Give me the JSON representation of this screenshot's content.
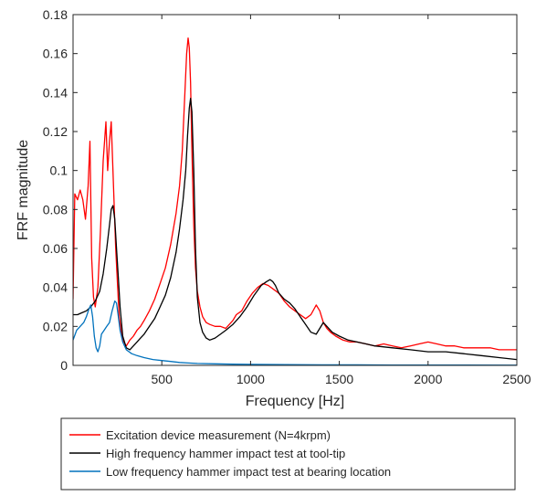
{
  "chart_data": {
    "type": "line",
    "title": "",
    "xlabel": "Frequency [Hz]",
    "ylabel": "FRF magnitude",
    "xlim": [
      0,
      2500
    ],
    "ylim": [
      0,
      0.18
    ],
    "xticks": [
      500,
      1000,
      1500,
      2000,
      2500
    ],
    "xtick_labels": [
      "500",
      "1000",
      "1500",
      "2000",
      "2500"
    ],
    "yticks": [
      0,
      0.02,
      0.04,
      0.06,
      0.08,
      0.1,
      0.12,
      0.14,
      0.16,
      0.18
    ],
    "ytick_labels": [
      "0",
      "0.02",
      "0.04",
      "0.06",
      "0.08",
      "0.1",
      "0.12",
      "0.14",
      "0.16",
      "0.18"
    ],
    "grid": false,
    "legend_placement": "below",
    "series": [
      {
        "name": "Excitation device measurement (N=4krpm)",
        "color": "#ff0000",
        "x": [
          0,
          10,
          25,
          40,
          55,
          70,
          85,
          95,
          105,
          115,
          125,
          140,
          155,
          170,
          185,
          195,
          205,
          215,
          225,
          240,
          260,
          280,
          300,
          320,
          340,
          360,
          380,
          400,
          430,
          460,
          490,
          520,
          550,
          580,
          600,
          615,
          630,
          640,
          648,
          655,
          662,
          670,
          680,
          690,
          700,
          715,
          730,
          750,
          770,
          800,
          830,
          860,
          880,
          900,
          920,
          950,
          980,
          1010,
          1040,
          1070,
          1100,
          1130,
          1160,
          1190,
          1220,
          1250,
          1280,
          1310,
          1340,
          1370,
          1390,
          1410,
          1430,
          1450,
          1480,
          1520,
          1560,
          1600,
          1650,
          1700,
          1750,
          1800,
          1850,
          1900,
          1950,
          2000,
          2050,
          2100,
          2150,
          2200,
          2250,
          2300,
          2350,
          2400,
          2450,
          2500
        ],
        "y": [
          0.034,
          0.088,
          0.085,
          0.09,
          0.085,
          0.075,
          0.092,
          0.115,
          0.055,
          0.035,
          0.03,
          0.04,
          0.07,
          0.105,
          0.125,
          0.1,
          0.115,
          0.125,
          0.1,
          0.06,
          0.025,
          0.013,
          0.01,
          0.013,
          0.015,
          0.018,
          0.02,
          0.023,
          0.028,
          0.034,
          0.042,
          0.05,
          0.062,
          0.078,
          0.092,
          0.11,
          0.14,
          0.16,
          0.168,
          0.163,
          0.145,
          0.11,
          0.072,
          0.05,
          0.038,
          0.03,
          0.025,
          0.022,
          0.021,
          0.02,
          0.02,
          0.019,
          0.021,
          0.023,
          0.026,
          0.028,
          0.033,
          0.037,
          0.04,
          0.042,
          0.041,
          0.039,
          0.037,
          0.033,
          0.03,
          0.028,
          0.026,
          0.024,
          0.026,
          0.031,
          0.028,
          0.022,
          0.019,
          0.017,
          0.015,
          0.013,
          0.012,
          0.012,
          0.011,
          0.01,
          0.011,
          0.01,
          0.009,
          0.01,
          0.011,
          0.012,
          0.011,
          0.01,
          0.01,
          0.009,
          0.009,
          0.009,
          0.009,
          0.008,
          0.008,
          0.008
        ]
      },
      {
        "name": "High frequency hammer impact test at tool-tip",
        "color": "#000000",
        "x": [
          0,
          25,
          50,
          75,
          100,
          125,
          150,
          170,
          190,
          205,
          215,
          225,
          235,
          245,
          255,
          265,
          280,
          300,
          320,
          340,
          360,
          380,
          400,
          430,
          460,
          490,
          520,
          550,
          580,
          600,
          620,
          635,
          645,
          655,
          662,
          670,
          680,
          690,
          700,
          715,
          730,
          750,
          770,
          800,
          830,
          860,
          900,
          940,
          980,
          1020,
          1060,
          1090,
          1110,
          1125,
          1140,
          1160,
          1190,
          1220,
          1250,
          1280,
          1310,
          1340,
          1370,
          1390,
          1410,
          1430,
          1460,
          1500,
          1550,
          1600,
          1650,
          1700,
          1800,
          1900,
          2000,
          2100,
          2200,
          2300,
          2400,
          2500
        ],
        "y": [
          0.026,
          0.026,
          0.027,
          0.028,
          0.03,
          0.033,
          0.038,
          0.047,
          0.06,
          0.072,
          0.08,
          0.082,
          0.075,
          0.06,
          0.045,
          0.03,
          0.015,
          0.009,
          0.008,
          0.01,
          0.012,
          0.014,
          0.016,
          0.02,
          0.024,
          0.03,
          0.036,
          0.045,
          0.058,
          0.07,
          0.085,
          0.1,
          0.118,
          0.132,
          0.137,
          0.13,
          0.1,
          0.06,
          0.035,
          0.022,
          0.017,
          0.014,
          0.013,
          0.014,
          0.016,
          0.018,
          0.021,
          0.025,
          0.03,
          0.036,
          0.041,
          0.043,
          0.044,
          0.043,
          0.041,
          0.037,
          0.034,
          0.032,
          0.029,
          0.025,
          0.021,
          0.017,
          0.016,
          0.019,
          0.022,
          0.02,
          0.017,
          0.015,
          0.013,
          0.012,
          0.011,
          0.01,
          0.009,
          0.008,
          0.007,
          0.007,
          0.006,
          0.005,
          0.004,
          0.003
        ]
      },
      {
        "name": "Low frequency hammer impact test at bearing location",
        "color": "#0072bd",
        "x": [
          0,
          20,
          40,
          60,
          75,
          90,
          100,
          110,
          120,
          130,
          140,
          150,
          160,
          175,
          190,
          205,
          220,
          235,
          245,
          255,
          265,
          280,
          300,
          330,
          360,
          400,
          450,
          500,
          550,
          600,
          650,
          700,
          800,
          900,
          1000,
          1200,
          1400,
          1600,
          1800,
          2000,
          2500
        ],
        "y": [
          0.013,
          0.018,
          0.02,
          0.022,
          0.025,
          0.029,
          0.031,
          0.025,
          0.015,
          0.009,
          0.007,
          0.01,
          0.016,
          0.018,
          0.02,
          0.022,
          0.028,
          0.033,
          0.032,
          0.025,
          0.018,
          0.012,
          0.008,
          0.006,
          0.005,
          0.004,
          0.003,
          0.0025,
          0.002,
          0.0015,
          0.0012,
          0.001,
          0.0008,
          0.0006,
          0.0005,
          0.0004,
          0.0003,
          0.0003,
          0.0002,
          0.0002,
          0.0001
        ]
      }
    ]
  }
}
